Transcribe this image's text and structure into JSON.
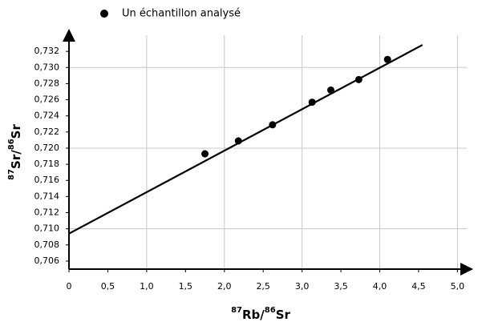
{
  "chart_data": {
    "type": "scatter",
    "legend": {
      "label": "Un échantillon analysé",
      "position": "top"
    },
    "series": [
      {
        "name": "Un échantillon analysé",
        "color": "#000000",
        "x": [
          1.75,
          2.18,
          2.62,
          3.13,
          3.37,
          3.73,
          4.1
        ],
        "values": [
          0.7193,
          0.7209,
          0.7229,
          0.7257,
          0.7272,
          0.7285,
          0.731
        ]
      }
    ],
    "fit_line": {
      "color": "#000000",
      "x": [
        0,
        4.55
      ],
      "values": [
        0.7094,
        0.7328
      ]
    },
    "xlabel": [
      {
        "text": "87",
        "sup": true
      },
      {
        "text": "Rb/",
        "sup": false
      },
      {
        "text": "86",
        "sup": true
      },
      {
        "text": "Sr",
        "sup": false
      }
    ],
    "ylabel": [
      {
        "text": "87",
        "sup": true
      },
      {
        "text": "Sr/",
        "sup": false
      },
      {
        "text": "86",
        "sup": true
      },
      {
        "text": "Sr",
        "sup": false
      }
    ],
    "xlim": [
      0,
      5.12
    ],
    "ylim": [
      0.705,
      0.734
    ],
    "xticks": [
      0,
      {
        "value": 0.5,
        "label": "0,5"
      },
      {
        "value": 1,
        "label": "1,0"
      },
      {
        "value": 1.5,
        "label": "1,5"
      },
      {
        "value": 2,
        "label": "2,0"
      },
      {
        "value": 2.5,
        "label": "2,5"
      },
      {
        "value": 3,
        "label": "3,0"
      },
      {
        "value": 3.5,
        "label": "3,5"
      },
      {
        "value": 4,
        "label": "4,0"
      },
      {
        "value": 4.5,
        "label": "4,5"
      },
      {
        "value": 5,
        "label": "5,0"
      }
    ],
    "yticks": [
      {
        "value": 0.706,
        "label": "0,706"
      },
      {
        "value": 0.708,
        "label": "0,708"
      },
      {
        "value": 0.71,
        "label": "0,710"
      },
      {
        "value": 0.712,
        "label": "0,712"
      },
      {
        "value": 0.714,
        "label": "0,714"
      },
      {
        "value": 0.716,
        "label": "0,716"
      },
      {
        "value": 0.718,
        "label": "0,718"
      },
      {
        "value": 0.72,
        "label": "0,720"
      },
      {
        "value": 0.722,
        "label": "0,722"
      },
      {
        "value": 0.724,
        "label": "0,724"
      },
      {
        "value": 0.726,
        "label": "0,726"
      },
      {
        "value": 0.728,
        "label": "0,728"
      },
      {
        "value": 0.73,
        "label": "0,730"
      },
      {
        "value": 0.732,
        "label": "0,732"
      }
    ],
    "xgrid": [
      1,
      2,
      3,
      4,
      5
    ],
    "ygrid": [
      0.71,
      0.72,
      0.73
    ]
  }
}
